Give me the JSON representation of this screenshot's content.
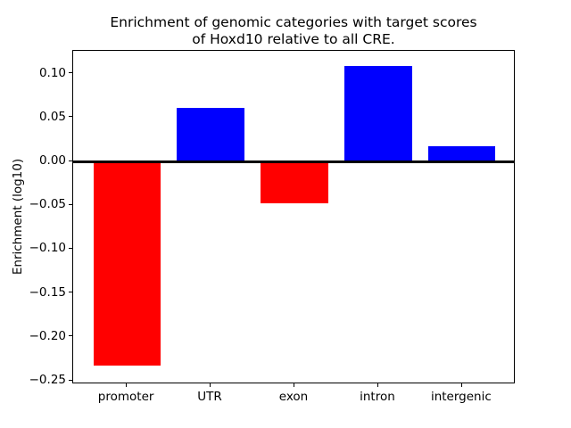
{
  "chart_data": {
    "type": "bar",
    "title_line1": "Enrichment of genomic categories with target scores",
    "title_line2": "of Hoxd10 relative to all CRE.",
    "title": "Enrichment of genomic categories with target scores of Hoxd10 relative to all CRE.",
    "ylabel": "Enrichment (log10)",
    "xlabel": "",
    "categories": [
      "promoter",
      "UTR",
      "exon",
      "intron",
      "intergenic"
    ],
    "values": [
      -0.233,
      0.061,
      -0.048,
      0.109,
      0.017
    ],
    "bar_colors": [
      "#ff0000",
      "#0000ff",
      "#ff0000",
      "#0000ff",
      "#0000ff"
    ],
    "positive_color": "#0000ff",
    "negative_color": "#ff0000",
    "yticks": [
      0.1,
      0.05,
      0.0,
      -0.05,
      -0.1,
      -0.15,
      -0.2,
      -0.25
    ],
    "ytick_labels": [
      "0.10",
      "0.05",
      "0.00",
      "−0.05",
      "−0.10",
      "−0.15",
      "−0.20",
      "−0.25"
    ],
    "ylim": [
      -0.254,
      0.126
    ],
    "grid": false,
    "legend_position": "none",
    "zero_line": true,
    "background_color": "#ffffff",
    "spine_color": "#000000"
  }
}
